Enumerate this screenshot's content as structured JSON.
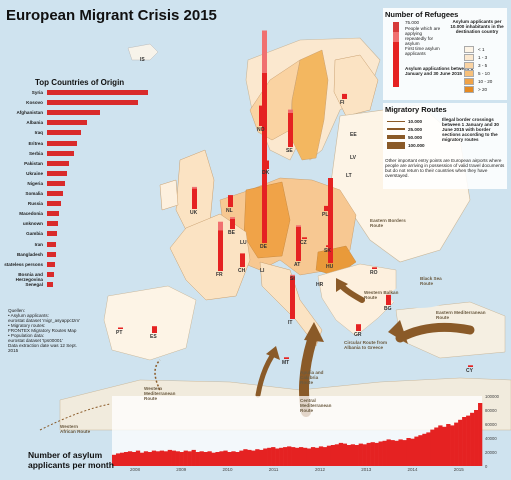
{
  "title": "European Migrant Crisis 2015",
  "origin": {
    "title": "Top Countries of Origin",
    "countries": [
      {
        "name": "Syria",
        "value": 1.0
      },
      {
        "name": "Kosovo",
        "value": 0.9
      },
      {
        "name": "Afghanistan",
        "value": 0.52
      },
      {
        "name": "Albania",
        "value": 0.4
      },
      {
        "name": "Iraq",
        "value": 0.34
      },
      {
        "name": "Eritrea",
        "value": 0.3
      },
      {
        "name": "Serbia",
        "value": 0.27
      },
      {
        "name": "Pakistan",
        "value": 0.22
      },
      {
        "name": "Ukraine",
        "value": 0.2
      },
      {
        "name": "Nigeria",
        "value": 0.18
      },
      {
        "name": "Somalia",
        "value": 0.16
      },
      {
        "name": "Russia",
        "value": 0.14
      },
      {
        "name": "Macedonia",
        "value": 0.12
      },
      {
        "name": "unknown",
        "value": 0.11
      },
      {
        "name": "Gambia",
        "value": 0.1
      },
      {
        "name": "Iran",
        "value": 0.09
      },
      {
        "name": "Bangladesh",
        "value": 0.085
      },
      {
        "name": "stateless persons",
        "value": 0.08
      },
      {
        "name": "Bosnia and Herzegovina",
        "value": 0.07
      },
      {
        "name": "Senegal",
        "value": 0.06
      }
    ],
    "bar_color": "#d92b2b"
  },
  "legend": {
    "refugees": {
      "title": "Number of Refugees",
      "scale_max": "75.000",
      "note1": "People which are applying repeatedly for asylum",
      "note2": "First time asylum applicants",
      "period": "Asylum applications between 1 January and 30 June 2015"
    },
    "asylum_rate": {
      "title": "Asylum applicants per 10.000 inhabitants in the destination country",
      "classes": [
        {
          "label": "< 1",
          "color": "#fdf4e6"
        },
        {
          "label": "1 - 3",
          "color": "#fbe8cf"
        },
        {
          "label": "3 - 5",
          "color": "#fad3a2"
        },
        {
          "label": "5 - 10",
          "color": "#f7c07a"
        },
        {
          "label": "10 - 20",
          "color": "#f0a348"
        },
        {
          "label": "> 20",
          "color": "#e58a22"
        }
      ]
    },
    "routes": {
      "title": "Migratory Routes",
      "period": "Illegal border crossings between 1 January and 30 June 2015 with border sections according to the migratory routes",
      "widths": [
        {
          "label": "10.000",
          "w": 1
        },
        {
          "label": "25.000",
          "w": 2
        },
        {
          "label": "50.000",
          "w": 4
        },
        {
          "label": "100.000",
          "w": 7
        }
      ],
      "color": "#8a5a28",
      "footnote": "Other important entry points are European airports where people are arriving in possession of valid travel documents but do not return to their countries when they have overstayed."
    }
  },
  "country_labels": [
    {
      "code": "IS"
    },
    {
      "code": "NO"
    },
    {
      "code": "SE"
    },
    {
      "code": "FI"
    },
    {
      "code": "DK"
    },
    {
      "code": "LV"
    },
    {
      "code": "LT"
    },
    {
      "code": "UK"
    },
    {
      "code": "NL"
    },
    {
      "code": "BE"
    },
    {
      "code": "LU"
    },
    {
      "code": "DE"
    },
    {
      "code": "PL"
    },
    {
      "code": "CZ"
    },
    {
      "code": "SK"
    },
    {
      "code": "FR"
    },
    {
      "code": "CH"
    },
    {
      "code": "LI"
    },
    {
      "code": "AT"
    },
    {
      "code": "SI"
    },
    {
      "code": "HU"
    },
    {
      "code": "HR"
    },
    {
      "code": "RO"
    },
    {
      "code": "BG"
    },
    {
      "code": "IT"
    },
    {
      "code": "ES"
    },
    {
      "code": "PT"
    },
    {
      "code": "GR"
    },
    {
      "code": "MT"
    },
    {
      "code": "CY"
    },
    {
      "code": "EE"
    }
  ],
  "country_bars": [
    {
      "code": "NO",
      "repeat": 0,
      "first": 0.12
    },
    {
      "code": "SE",
      "repeat": 0.02,
      "first": 0.2
    },
    {
      "code": "FI",
      "repeat": 0,
      "first": 0.03
    },
    {
      "code": "DK",
      "repeat": 0,
      "first": 0.05
    },
    {
      "code": "UK",
      "repeat": 0.01,
      "first": 0.12
    },
    {
      "code": "NL",
      "repeat": 0,
      "first": 0.07
    },
    {
      "code": "BE",
      "repeat": 0.01,
      "first": 0.06
    },
    {
      "code": "DE",
      "repeat": 0.25,
      "first": 1.0
    },
    {
      "code": "PL",
      "repeat": 0,
      "first": 0.03
    },
    {
      "code": "CZ",
      "repeat": 0,
      "first": 0.01
    },
    {
      "code": "SK",
      "repeat": 0,
      "first": 0.01
    },
    {
      "code": "FR",
      "repeat": 0.05,
      "first": 0.24
    },
    {
      "code": "CH",
      "repeat": 0,
      "first": 0.08
    },
    {
      "code": "AT",
      "repeat": 0.01,
      "first": 0.2
    },
    {
      "code": "HU",
      "repeat": 0,
      "first": 0.5
    },
    {
      "code": "IT",
      "repeat": 0.01,
      "first": 0.25
    },
    {
      "code": "ES",
      "repeat": 0,
      "first": 0.04
    },
    {
      "code": "GR",
      "repeat": 0,
      "first": 0.04
    },
    {
      "code": "BG",
      "repeat": 0,
      "first": 0.06
    },
    {
      "code": "RO",
      "repeat": 0,
      "first": 0.01
    },
    {
      "code": "PT",
      "repeat": 0,
      "first": 0.005
    },
    {
      "code": "CY",
      "repeat": 0,
      "first": 0.01
    },
    {
      "code": "MT",
      "repeat": 0,
      "first": 0.01
    }
  ],
  "bar_colors": {
    "repeat": "#f07070",
    "first": "#e52222"
  },
  "route_labels": [
    {
      "text": "Eastern Borders Route",
      "key": "eastern-borders"
    },
    {
      "text": "Western Balkan Route",
      "key": "western-balkan"
    },
    {
      "text": "Black Sea Route",
      "key": "black-sea"
    },
    {
      "text": "Eastern Mediterranean Route",
      "key": "eastern-med"
    },
    {
      "text": "Circular Route from Albania to Greece",
      "key": "circular"
    },
    {
      "text": "Apulia and Calabria Route",
      "key": "apulia"
    },
    {
      "text": "Central Mediterranean Route",
      "key": "central-med"
    },
    {
      "text": "Western Mediterranean Route",
      "key": "western-med"
    },
    {
      "text": "Western African Route",
      "key": "western-african"
    }
  ],
  "sources": {
    "heading": "Quellen:",
    "line1": "• Asylum applicants:",
    "line2": "eurostat dataset 'migr_asyappctzm'",
    "line3": "• Migratory routes:",
    "line4": "FRONTEX Migratory Routes Map",
    "line5": "• Population data:",
    "line6": "eurostat dataset 'tps00001'",
    "line7": "Data extraction date was 12 Sept. 2015"
  },
  "histogram": {
    "title1": "Number of asylum",
    "title2": "applicants per month",
    "years": [
      "2008",
      "2009",
      "2010",
      "2011",
      "2012",
      "2013",
      "2014",
      "2015"
    ],
    "y_ticks": [
      "100000",
      "80000",
      "60000",
      "40000",
      "20000",
      "0"
    ],
    "y_max": 100000,
    "bar_color": "#e52222",
    "monthly": [
      16000,
      18000,
      19000,
      20000,
      21000,
      20000,
      22000,
      19000,
      21000,
      20000,
      22000,
      21000,
      22000,
      21000,
      23000,
      22000,
      21000,
      20000,
      22000,
      21000,
      23000,
      20000,
      21000,
      20000,
      21000,
      19000,
      20000,
      21000,
      22000,
      20000,
      21000,
      20000,
      22000,
      24000,
      23000,
      22000,
      24000,
      23000,
      25000,
      26000,
      27000,
      25000,
      26000,
      27000,
      28000,
      27000,
      26000,
      27000,
      26000,
      25000,
      27000,
      26000,
      28000,
      27000,
      29000,
      30000,
      31000,
      33000,
      32000,
      30000,
      31000,
      30000,
      32000,
      31000,
      33000,
      34000,
      33000,
      35000,
      36000,
      38000,
      37000,
      36000,
      38000,
      37000,
      40000,
      39000,
      42000,
      44000,
      46000,
      48000,
      52000,
      55000,
      58000,
      56000,
      60000,
      58000,
      62000,
      66000,
      70000,
      72000,
      76000,
      80000,
      90000
    ]
  }
}
